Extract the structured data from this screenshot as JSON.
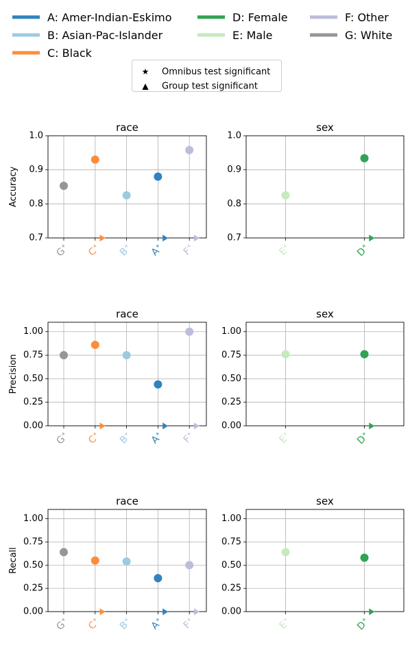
{
  "legend": {
    "groups": [
      {
        "key": "A",
        "label": "A: Amer-Indian-Eskimo",
        "color": "#3182bd"
      },
      {
        "key": "B",
        "label": "B: Asian-Pac-Islander",
        "color": "#9ecae1"
      },
      {
        "key": "C",
        "label": "C: Black",
        "color": "#fd8d3c"
      },
      {
        "key": "D",
        "label": "D: Female",
        "color": "#31a354"
      },
      {
        "key": "E",
        "label": "E: Male",
        "color": "#c7e9c0"
      },
      {
        "key": "F",
        "label": "F: Other",
        "color": "#bcbddc"
      },
      {
        "key": "G",
        "label": "G: White",
        "color": "#969696"
      }
    ],
    "symbols": [
      {
        "glyph": "★",
        "label": "Omnibus test significant"
      },
      {
        "glyph": "▲",
        "label": "Group test significant"
      }
    ]
  },
  "chart_data": [
    {
      "type": "scatter",
      "title": "race",
      "ylabel": "Accuracy",
      "ylim": [
        0.7,
        1.0
      ],
      "yticks": [
        0.7,
        0.8,
        0.9,
        1.0
      ],
      "ytick_labels": [
        "0.7",
        "0.8",
        "0.9",
        "1.0"
      ],
      "grid": true,
      "categories": [
        "G",
        "C",
        "B",
        "A",
        "F"
      ],
      "values": [
        0.853,
        0.93,
        0.825,
        0.88,
        0.958
      ],
      "omnibus_significant": true,
      "group_significant": [
        false,
        true,
        false,
        true,
        true
      ]
    },
    {
      "type": "scatter",
      "title": "sex",
      "ylabel": "",
      "ylim": [
        0.7,
        1.0
      ],
      "yticks": [
        0.7,
        0.8,
        0.9,
        1.0
      ],
      "ytick_labels": [
        "0.7",
        "0.8",
        "0.9",
        "1.0"
      ],
      "grid": true,
      "categories": [
        "E",
        "D"
      ],
      "values": [
        0.825,
        0.934
      ],
      "omnibus_significant": true,
      "group_significant": [
        false,
        true
      ]
    },
    {
      "type": "scatter",
      "title": "race",
      "ylabel": "Precision",
      "ylim": [
        0.0,
        1.1
      ],
      "yticks": [
        0,
        0.25,
        0.5,
        0.75,
        1.0
      ],
      "ytick_labels": [
        "0.00",
        "0.25",
        "0.50",
        "0.75",
        "1.00"
      ],
      "grid": true,
      "categories": [
        "G",
        "C",
        "B",
        "A",
        "F"
      ],
      "values": [
        0.75,
        0.86,
        0.75,
        0.44,
        1.0
      ],
      "omnibus_significant": true,
      "group_significant": [
        false,
        true,
        false,
        true,
        true
      ]
    },
    {
      "type": "scatter",
      "title": "sex",
      "ylabel": "",
      "ylim": [
        0.0,
        1.1
      ],
      "yticks": [
        0,
        0.25,
        0.5,
        0.75,
        1.0
      ],
      "ytick_labels": [
        "0.00",
        "0.25",
        "0.50",
        "0.75",
        "1.00"
      ],
      "grid": true,
      "categories": [
        "E",
        "D"
      ],
      "values": [
        0.76,
        0.76
      ],
      "omnibus_significant": true,
      "group_significant": [
        false,
        true
      ]
    },
    {
      "type": "scatter",
      "title": "race",
      "ylabel": "Recall",
      "ylim": [
        0.0,
        1.1
      ],
      "yticks": [
        0,
        0.25,
        0.5,
        0.75,
        1.0
      ],
      "ytick_labels": [
        "0.00",
        "0.25",
        "0.50",
        "0.75",
        "1.00"
      ],
      "grid": true,
      "categories": [
        "G",
        "C",
        "B",
        "A",
        "F"
      ],
      "values": [
        0.64,
        0.55,
        0.54,
        0.36,
        0.5
      ],
      "omnibus_significant": true,
      "group_significant": [
        false,
        true,
        false,
        true,
        true
      ]
    },
    {
      "type": "scatter",
      "title": "sex",
      "ylabel": "",
      "ylim": [
        0.0,
        1.1
      ],
      "yticks": [
        0,
        0.25,
        0.5,
        0.75,
        1.0
      ],
      "ytick_labels": [
        "0.00",
        "0.25",
        "0.50",
        "0.75",
        "1.00"
      ],
      "grid": true,
      "categories": [
        "E",
        "D"
      ],
      "values": [
        0.64,
        0.58
      ],
      "omnibus_significant": true,
      "group_significant": [
        false,
        true
      ]
    }
  ]
}
